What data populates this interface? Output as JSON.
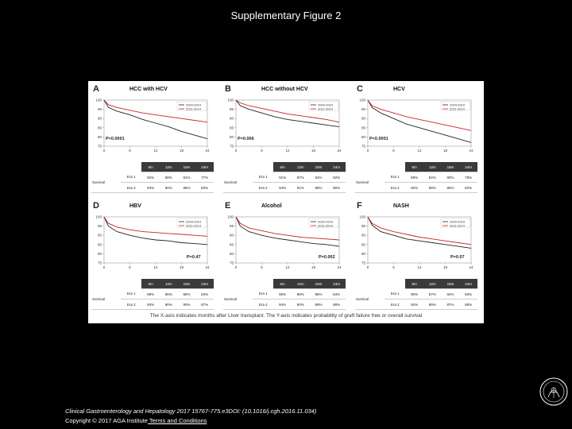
{
  "slide_title": "Supplementary Figure 2",
  "caption": "The X-axis indicates months after Liver transplant.  The Y-axis indicates probability of graft failure free or overall survival",
  "footer": {
    "citation": "Clinical Gastroenterology and Hepatology 2017 15767-775.e3DOI: (10.1016/j.cgh.2016.11.034)",
    "copyright": "Copyright © 2017 AGA Institute",
    "terms_link": " Terms and Conditions"
  },
  "colors": {
    "era1": "#222222",
    "era2": "#cc2222"
  },
  "chart_data": [
    {
      "type": "line",
      "letter": "A",
      "title": "HCC with HCV",
      "x": [
        0,
        1,
        3,
        6,
        9,
        12,
        15,
        18,
        21,
        24
      ],
      "ylim": [
        75,
        100
      ],
      "yticks": [
        75,
        80,
        85,
        90,
        95,
        100
      ],
      "xticks": [
        0,
        6,
        12,
        18,
        24
      ],
      "series": [
        {
          "name": "2004-2010",
          "values": [
            100,
            96,
            94,
            92,
            89.5,
            87.5,
            85.5,
            83,
            81,
            79
          ]
        },
        {
          "name": "2011-2014",
          "values": [
            100,
            97.5,
            96,
            94.5,
            93,
            92,
            91,
            90,
            89,
            88
          ]
        }
      ],
      "pvalue": "P<0.0001",
      "table": {
        "row_label": "Survival",
        "headers": [
          "6m",
          "12m",
          "18m",
          "24m"
        ],
        "rows": [
          {
            "label": "Era 1",
            "values": [
              "92%",
              "88%",
              "81%",
              "77%"
            ]
          },
          {
            "label": "Era 2",
            "values": [
              "94%",
              "90%",
              "86%",
              "83%"
            ]
          }
        ]
      }
    },
    {
      "type": "line",
      "letter": "B",
      "title": "HCC without HCV",
      "x": [
        0,
        1,
        3,
        6,
        9,
        12,
        15,
        18,
        21,
        24
      ],
      "ylim": [
        75,
        100
      ],
      "yticks": [
        75,
        80,
        85,
        90,
        95,
        100
      ],
      "xticks": [
        0,
        6,
        12,
        18,
        24
      ],
      "series": [
        {
          "name": "2004-2010",
          "values": [
            100,
            97,
            95,
            93,
            91,
            89.5,
            88.5,
            87.5,
            86.5,
            85.5
          ]
        },
        {
          "name": "2011-2014",
          "values": [
            100,
            98.5,
            97,
            95.5,
            94,
            92.5,
            91.5,
            90.5,
            89.5,
            88
          ]
        }
      ],
      "pvalue": "P=0.006",
      "table": {
        "row_label": "Survival",
        "headers": [
          "6m",
          "12m",
          "18m",
          "24m"
        ],
        "rows": [
          {
            "label": "Era 1",
            "values": [
              "91%",
              "87%",
              "84%",
              "82%"
            ]
          },
          {
            "label": "Era 2",
            "values": [
              "94%",
              "91%",
              "88%",
              "86%"
            ]
          }
        ]
      }
    },
    {
      "type": "line",
      "letter": "C",
      "title": "HCV",
      "x": [
        0,
        1,
        3,
        6,
        9,
        12,
        15,
        18,
        21,
        24
      ],
      "ylim": [
        75,
        100
      ],
      "yticks": [
        75,
        80,
        85,
        90,
        95,
        100
      ],
      "xticks": [
        0,
        6,
        12,
        18,
        24
      ],
      "series": [
        {
          "name": "2004-2010",
          "values": [
            100,
            96,
            93,
            90,
            87,
            85,
            83,
            81,
            79,
            77
          ]
        },
        {
          "name": "2011-2014",
          "values": [
            100,
            97,
            95,
            93,
            91,
            89.5,
            88,
            86.5,
            85,
            83.5
          ]
        }
      ],
      "pvalue": "P<0.0001",
      "table": {
        "row_label": "Survival",
        "headers": [
          "6m",
          "12m",
          "18m",
          "24m"
        ],
        "rows": [
          {
            "label": "Era 1",
            "values": [
              "89%",
              "84%",
              "80%",
              "78%"
            ]
          },
          {
            "label": "Era 2",
            "values": [
              "92%",
              "88%",
              "85%",
              "82%"
            ]
          }
        ]
      }
    },
    {
      "type": "line",
      "letter": "D",
      "title": "HBV",
      "x": [
        0,
        1,
        3,
        6,
        9,
        12,
        15,
        18,
        21,
        24
      ],
      "ylim": [
        75,
        100
      ],
      "yticks": [
        75,
        80,
        85,
        90,
        95,
        100
      ],
      "xticks": [
        0,
        6,
        12,
        18,
        24
      ],
      "series": [
        {
          "name": "2004-2010",
          "values": [
            100,
            95,
            92,
            90,
            88.5,
            87.5,
            87,
            86,
            85.5,
            85
          ]
        },
        {
          "name": "2011-2014",
          "values": [
            100,
            96.5,
            94.5,
            93,
            92,
            91.5,
            91,
            90.5,
            90,
            89.5
          ]
        }
      ],
      "pvalue": "P=0.47",
      "table": {
        "row_label": "Survival",
        "headers": [
          "6m",
          "12m",
          "18m",
          "24m"
        ],
        "rows": [
          {
            "label": "Era 1",
            "values": [
              "89%",
              "86%",
              "85%",
              "84%"
            ]
          },
          {
            "label": "Era 2",
            "values": [
              "93%",
              "90%",
              "90%",
              "87%"
            ]
          }
        ]
      }
    },
    {
      "type": "line",
      "letter": "E",
      "title": "Alcohol",
      "x": [
        0,
        1,
        3,
        6,
        9,
        12,
        15,
        18,
        21,
        24
      ],
      "ylim": [
        75,
        100
      ],
      "yticks": [
        75,
        80,
        85,
        90,
        95,
        100
      ],
      "xticks": [
        0,
        6,
        12,
        18,
        24
      ],
      "series": [
        {
          "name": "2004-2010",
          "values": [
            100,
            95,
            92,
            90,
            88.5,
            87.5,
            86.5,
            85.5,
            85,
            84
          ]
        },
        {
          "name": "2011-2014",
          "values": [
            100,
            96.5,
            94,
            92.5,
            91,
            90,
            89,
            88.5,
            88,
            87.5
          ]
        }
      ],
      "pvalue": "P=0.002",
      "table": {
        "row_label": "Survival",
        "headers": [
          "6m",
          "12m",
          "18m",
          "24m"
        ],
        "rows": [
          {
            "label": "Era 1",
            "values": [
              "90%",
              "88%",
              "86%",
              "84%"
            ]
          },
          {
            "label": "Era 2",
            "values": [
              "94%",
              "90%",
              "89%",
              "88%"
            ]
          }
        ]
      }
    },
    {
      "type": "line",
      "letter": "F",
      "title": "NASH",
      "x": [
        0,
        1,
        3,
        6,
        9,
        12,
        15,
        18,
        21,
        24
      ],
      "ylim": [
        75,
        100
      ],
      "yticks": [
        75,
        80,
        85,
        90,
        95,
        100
      ],
      "xticks": [
        0,
        6,
        12,
        18,
        24
      ],
      "series": [
        {
          "name": "2004-2010",
          "values": [
            100,
            95.5,
            92,
            90,
            88,
            87,
            86,
            85,
            84,
            83
          ]
        },
        {
          "name": "2011-2014",
          "values": [
            100,
            96.5,
            94,
            92,
            90.5,
            89,
            88,
            87,
            86,
            85
          ]
        }
      ],
      "pvalue": "P=0.07",
      "table": {
        "row_label": "Survival",
        "headers": [
          "6m",
          "12m",
          "18m",
          "24m"
        ],
        "rows": [
          {
            "label": "Era 1",
            "values": [
              "90%",
              "87%",
              "84%",
              "83%"
            ]
          },
          {
            "label": "Era 2",
            "values": [
              "92%",
              "89%",
              "87%",
              "85%"
            ]
          }
        ]
      }
    }
  ]
}
